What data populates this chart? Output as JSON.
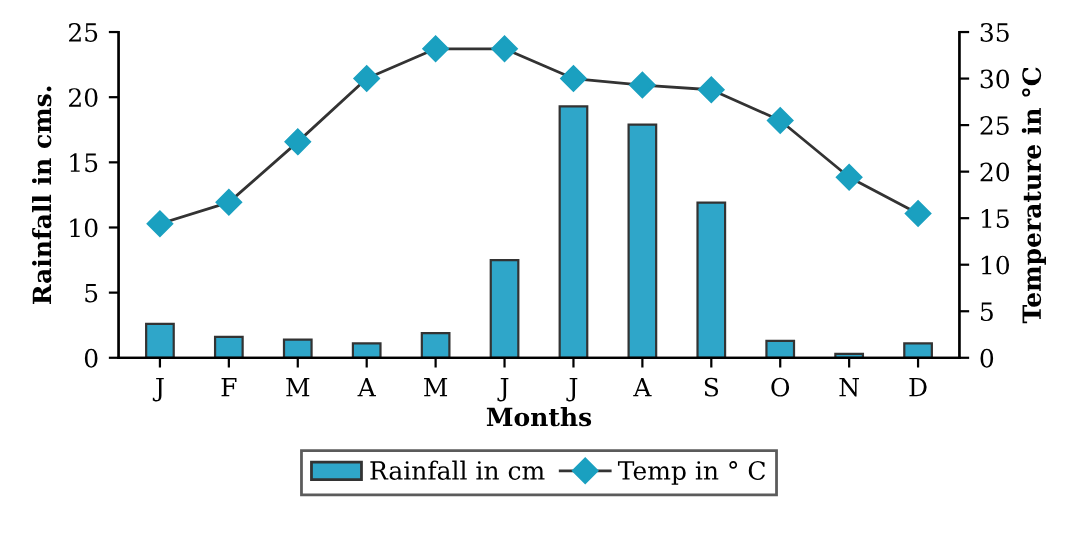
{
  "chart_data": {
    "type": "bar",
    "xlabel": "Months",
    "ylabel": "Rainfall in cms.",
    "y2label": "Temperature in °C",
    "categories": [
      "J",
      "F",
      "M",
      "A",
      "M",
      "J",
      "J",
      "A",
      "S",
      "O",
      "N",
      "D"
    ],
    "series": [
      {
        "name": "Rainfall in cm",
        "color": "#2fa6c9",
        "values": [
          2.6,
          1.6,
          1.4,
          1.1,
          1.9,
          7.5,
          19.3,
          17.9,
          11.9,
          1.3,
          0.3,
          1.1
        ]
      },
      {
        "name": "Temp in ° C",
        "type": "line",
        "axis": "y2",
        "color": "#1aa0c0",
        "marker": "diamond",
        "values": [
          14.4,
          16.7,
          23.2,
          30,
          33.2,
          33.2,
          30,
          29.3,
          28.8,
          25.5,
          19.4,
          15.5
        ]
      }
    ],
    "ylim": [
      0,
      25
    ],
    "yticks": [
      0,
      5,
      10,
      15,
      20,
      25
    ],
    "y2lim": [
      0,
      35
    ],
    "y2ticks": [
      0,
      5,
      10,
      15,
      20,
      25,
      30,
      35
    ],
    "legend": "bottom",
    "grid": false
  }
}
